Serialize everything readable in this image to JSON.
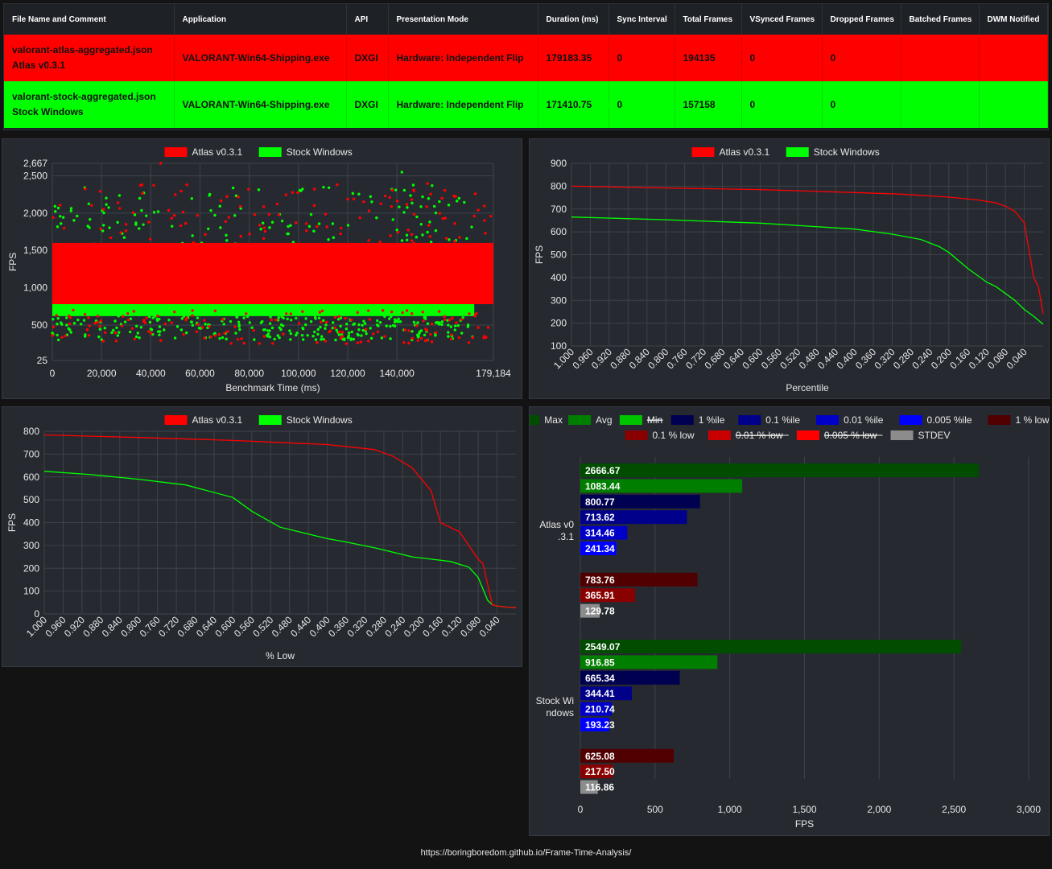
{
  "summary_table": {
    "headers": [
      "File Name and Comment",
      "Application",
      "API",
      "Presentation Mode",
      "Duration (ms)",
      "Sync Interval",
      "Total Frames",
      "VSynced Frames",
      "Dropped Frames",
      "Batched Frames",
      "DWM Notified"
    ],
    "rows": [
      {
        "file": "valorant-atlas-aggregated.json",
        "comment": "Atlas v0.3.1",
        "application": "VALORANT-Win64-Shipping.exe",
        "api": "DXGI",
        "presentation_mode": "Hardware: Independent Flip",
        "duration_ms": "179183.35",
        "sync_interval": "0",
        "total_frames": "194135",
        "vsynced_frames": "0",
        "dropped_frames": "0",
        "batched_frames": "",
        "dwm_notified": ""
      },
      {
        "file": "valorant-stock-aggregated.json",
        "comment": "Stock Windows",
        "application": "VALORANT-Win64-Shipping.exe",
        "api": "DXGI",
        "presentation_mode": "Hardware: Independent Flip",
        "duration_ms": "171410.75",
        "sync_interval": "0",
        "total_frames": "157158",
        "vsynced_frames": "0",
        "dropped_frames": "0",
        "batched_frames": "",
        "dwm_notified": ""
      }
    ]
  },
  "colors": {
    "atlas": "#ff0000",
    "stock": "#00ff00"
  },
  "chart_data": [
    {
      "type": "scatter",
      "legend": [
        {
          "name": "Atlas v0.3.1",
          "color": "#ff0000"
        },
        {
          "name": "Stock Windows",
          "color": "#00ff00"
        }
      ],
      "xlabel": "Benchmark Time (ms)",
      "ylabel": "FPS",
      "xlim": [
        0,
        179184
      ],
      "ylim": [
        25,
        2667
      ],
      "x_ticks": [
        0,
        20000,
        40000,
        60000,
        80000,
        100000,
        120000,
        140000,
        179184
      ],
      "x_tick_labels": [
        "0",
        "20,000",
        "40,000",
        "60,000",
        "80,000",
        "100,000",
        "120,000",
        "140,000",
        "179,184"
      ],
      "y_ticks": [
        25,
        500,
        1000,
        1500,
        2000,
        2500,
        2667
      ],
      "y_tick_labels": [
        "25",
        "500",
        "1,000",
        "1,500",
        "2,000",
        "2,500",
        "2,667"
      ],
      "series": [
        {
          "name": "Atlas v0.3.1",
          "band": [
            700,
            1600
          ],
          "x_end": 179184,
          "outliers_min": 250,
          "outliers_max": 2667
        },
        {
          "name": "Stock Windows",
          "band": [
            620,
            1400
          ],
          "x_end": 171411,
          "outliers_min": 300,
          "outliers_max": 2549
        }
      ]
    },
    {
      "type": "line",
      "legend": [
        {
          "name": "Atlas v0.3.1",
          "color": "#ff0000"
        },
        {
          "name": "Stock Windows",
          "color": "#00ff00"
        }
      ],
      "xlabel": "Percentile",
      "ylabel": "FPS",
      "xlim": [
        1.0,
        0.0
      ],
      "ylim": [
        100,
        900
      ],
      "x_tick_labels": [
        "1.000",
        "0.960",
        "0.920",
        "0.880",
        "0.840",
        "0.800",
        "0.760",
        "0.720",
        "0.680",
        "0.640",
        "0.600",
        "0.560",
        "0.520",
        "0.480",
        "0.440",
        "0.400",
        "0.360",
        "0.320",
        "0.280",
        "0.240",
        "0.200",
        "0.160",
        "0.120",
        "0.080",
        "0.040"
      ],
      "y_ticks": [
        100,
        200,
        300,
        400,
        500,
        600,
        700,
        800,
        900
      ],
      "series": [
        {
          "name": "Atlas v0.3.1",
          "x": [
            1.0,
            0.8,
            0.6,
            0.4,
            0.3,
            0.2,
            0.14,
            0.1,
            0.08,
            0.06,
            0.04,
            0.03,
            0.02,
            0.01,
            0.0
          ],
          "y": [
            800,
            792,
            785,
            772,
            765,
            752,
            740,
            727,
            712,
            690,
            640,
            520,
            400,
            360,
            240
          ]
        },
        {
          "name": "Stock Windows",
          "x": [
            1.0,
            0.8,
            0.6,
            0.4,
            0.32,
            0.26,
            0.22,
            0.2,
            0.16,
            0.14,
            0.12,
            0.1,
            0.08,
            0.06,
            0.04,
            0.02,
            0.0
          ],
          "y": [
            665,
            653,
            638,
            612,
            590,
            567,
            535,
            510,
            440,
            410,
            380,
            360,
            330,
            300,
            260,
            230,
            195
          ]
        }
      ]
    },
    {
      "type": "line",
      "legend": [
        {
          "name": "Atlas v0.3.1",
          "color": "#ff0000"
        },
        {
          "name": "Stock Windows",
          "color": "#00ff00"
        }
      ],
      "xlabel": "% Low",
      "ylabel": "FPS",
      "xlim": [
        1.0,
        0.0
      ],
      "ylim": [
        0,
        800
      ],
      "x_tick_labels": [
        "1.000",
        "0.960",
        "0.920",
        "0.880",
        "0.840",
        "0.800",
        "0.760",
        "0.720",
        "0.680",
        "0.640",
        "0.600",
        "0.560",
        "0.520",
        "0.480",
        "0.440",
        "0.400",
        "0.360",
        "0.320",
        "0.280",
        "0.240",
        "0.200",
        "0.160",
        "0.120",
        "0.080",
        "0.040"
      ],
      "y_ticks": [
        0,
        100,
        200,
        300,
        400,
        500,
        600,
        700,
        800
      ],
      "series": [
        {
          "name": "Atlas v0.3.1",
          "x": [
            1.0,
            0.8,
            0.6,
            0.4,
            0.3,
            0.26,
            0.22,
            0.2,
            0.18,
            0.17,
            0.16,
            0.14,
            0.12,
            0.1,
            0.08,
            0.07,
            0.06,
            0.05,
            0.04,
            0.02,
            0.0
          ],
          "y": [
            784,
            773,
            760,
            742,
            720,
            690,
            640,
            590,
            540,
            470,
            400,
            380,
            360,
            300,
            240,
            220,
            130,
            40,
            35,
            30,
            28
          ]
        },
        {
          "name": "Stock Windows",
          "x": [
            1.0,
            0.9,
            0.8,
            0.7,
            0.6,
            0.56,
            0.5,
            0.44,
            0.4,
            0.36,
            0.3,
            0.26,
            0.22,
            0.18,
            0.14,
            0.1,
            0.08,
            0.06,
            0.05,
            0.04,
            0.02,
            0.0
          ],
          "y": [
            625,
            610,
            590,
            565,
            510,
            450,
            380,
            350,
            330,
            315,
            290,
            270,
            250,
            240,
            230,
            205,
            160,
            60,
            40,
            35,
            30,
            28
          ]
        }
      ]
    },
    {
      "type": "bar",
      "orientation": "horizontal",
      "legend": [
        {
          "name": "Max",
          "color": "#004d00",
          "struck": false
        },
        {
          "name": "Avg",
          "color": "#007e00",
          "struck": false
        },
        {
          "name": "Min",
          "color": "#00c400",
          "struck": true
        },
        {
          "name": "1 %ile",
          "color": "#000050",
          "struck": false
        },
        {
          "name": "0.1 %ile",
          "color": "#00008a",
          "struck": false
        },
        {
          "name": "0.01 %ile",
          "color": "#0000c8",
          "struck": false
        },
        {
          "name": "0.005 %ile",
          "color": "#0000ff",
          "struck": false
        },
        {
          "name": "1 % low",
          "color": "#500000",
          "struck": false
        },
        {
          "name": "0.1 % low",
          "color": "#8a0000",
          "struck": false
        },
        {
          "name": "0.01 % low",
          "color": "#c80000",
          "struck": true
        },
        {
          "name": "0.005 % low",
          "color": "#ff0000",
          "struck": true
        },
        {
          "name": "STDEV",
          "color": "#8c8c8c",
          "struck": false
        }
      ],
      "categories": [
        "Atlas v0.3.1",
        "Stock Windows"
      ],
      "category_label_lines": [
        [
          "Atlas v0",
          ".3.1"
        ],
        [
          "Stock Wi",
          "ndows"
        ]
      ],
      "xlabel": "FPS",
      "xlim": [
        0,
        3000
      ],
      "x_ticks": [
        0,
        500,
        1000,
        1500,
        2000,
        2500,
        3000
      ],
      "x_tick_labels": [
        "0",
        "500",
        "1,000",
        "1,500",
        "2,000",
        "2,500",
        "3,000"
      ],
      "groups": [
        {
          "category": "Atlas v0.3.1",
          "bars": [
            {
              "series": "Max",
              "value": 2666.67,
              "label": "2666.67"
            },
            {
              "series": "Avg",
              "value": 1083.44,
              "label": "1083.44"
            },
            {
              "series": "1 %ile",
              "value": 800.77,
              "label": "800.77"
            },
            {
              "series": "0.1 %ile",
              "value": 713.62,
              "label": "713.62"
            },
            {
              "series": "0.01 %ile",
              "value": 314.46,
              "label": "314.46"
            },
            {
              "series": "0.005 %ile",
              "value": 241.34,
              "label": "241.34"
            },
            {
              "series": "1 % low",
              "value": 783.76,
              "label": "783.76"
            },
            {
              "series": "0.1 % low",
              "value": 365.91,
              "label": "365.91"
            },
            {
              "series": "STDEV",
              "value": 129.78,
              "label": "129.78"
            }
          ]
        },
        {
          "category": "Stock Windows",
          "bars": [
            {
              "series": "Max",
              "value": 2549.07,
              "label": "2549.07"
            },
            {
              "series": "Avg",
              "value": 916.85,
              "label": "916.85"
            },
            {
              "series": "1 %ile",
              "value": 665.34,
              "label": "665.34"
            },
            {
              "series": "0.1 %ile",
              "value": 344.41,
              "label": "344.41"
            },
            {
              "series": "0.01 %ile",
              "value": 210.74,
              "label": "210.74"
            },
            {
              "series": "0.005 %ile",
              "value": 193.23,
              "label": "193.23"
            },
            {
              "series": "1 % low",
              "value": 625.08,
              "label": "625.08"
            },
            {
              "series": "0.1 % low",
              "value": 217.5,
              "label": "217.50"
            },
            {
              "series": "STDEV",
              "value": 116.86,
              "label": "116.86"
            }
          ]
        }
      ]
    }
  ],
  "footer": {
    "link": "https://boringboredom.github.io/Frame-Time-Analysis/"
  }
}
